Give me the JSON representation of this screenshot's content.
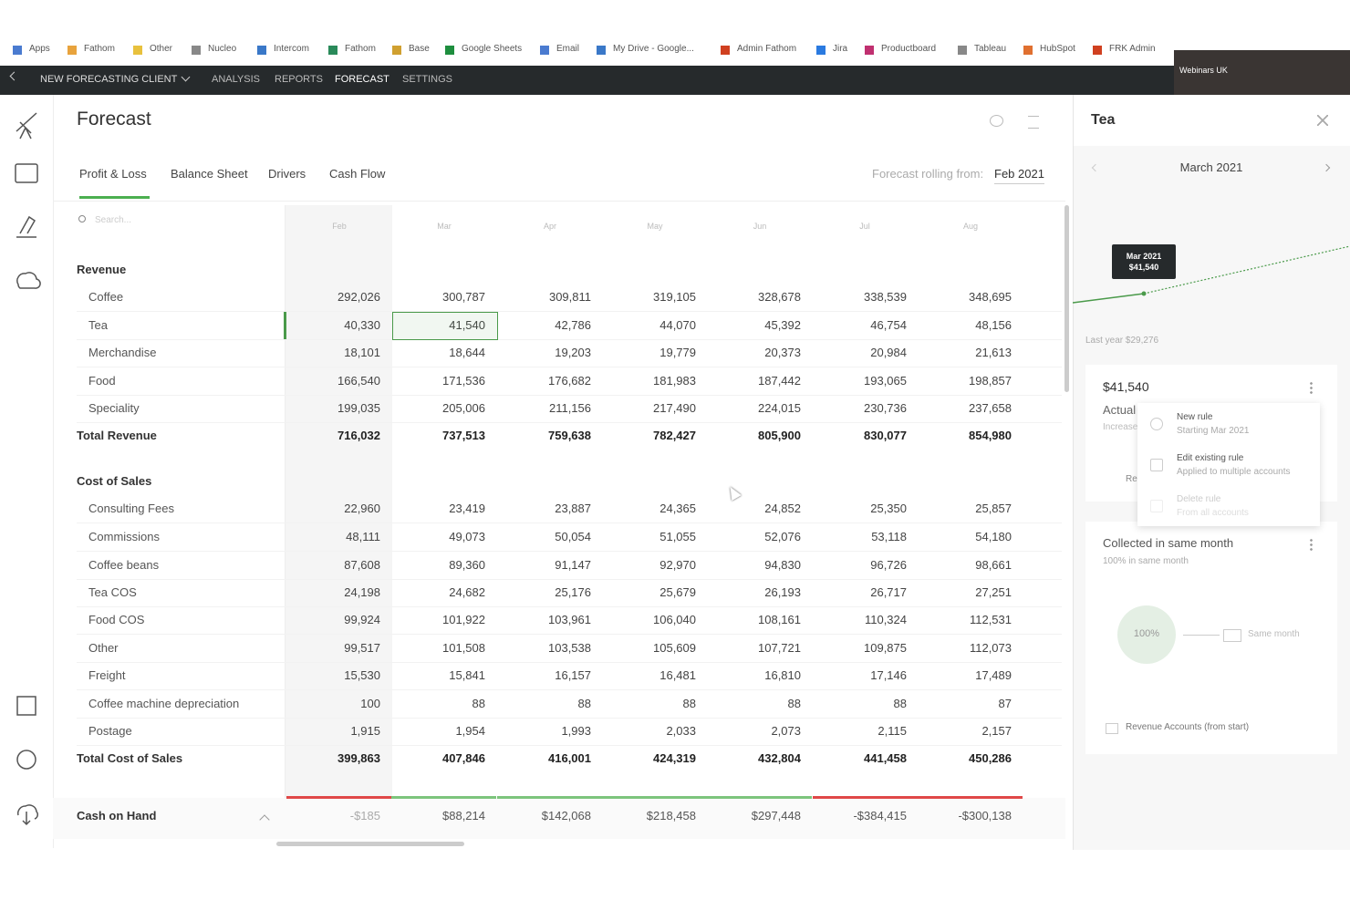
{
  "bookmarks": [
    "Apps",
    "Fathom",
    "Other",
    "Nucleo",
    "Intercom",
    "Fathom",
    "Base",
    "Google Sheets",
    "Email",
    "My Drive - Google...",
    "Admin Fathom",
    "Jira",
    "Productboard",
    "Tableau",
    "HubSpot",
    "FRK Admin"
  ],
  "nav": {
    "client": "NEW FORECASTING CLIENT",
    "items": [
      "ANALYSIS",
      "REPORTS",
      "FORECAST",
      "SETTINGS"
    ],
    "webcam_label": "Webinars UK"
  },
  "header": {
    "title": "Forecast",
    "tabs": [
      "Profit & Loss",
      "Balance Sheet",
      "Drivers",
      "Cash Flow"
    ],
    "rolling_label": "Forecast rolling from:",
    "rolling_value": "Feb 2021",
    "search_placeholder": "Search..."
  },
  "table": {
    "columns": [
      "Feb",
      "Mar",
      "Apr",
      "May",
      "Jun",
      "Jul",
      "Aug"
    ],
    "sections": [
      {
        "title": "Revenue",
        "rows": [
          {
            "label": "Coffee",
            "values": [
              "292,026",
              "300,787",
              "309,811",
              "319,105",
              "328,678",
              "338,539",
              "348,695"
            ]
          },
          {
            "label": "Tea",
            "values": [
              "40,330",
              "41,540",
              "42,786",
              "44,070",
              "45,392",
              "46,754",
              "48,156"
            ]
          },
          {
            "label": "Merchandise",
            "values": [
              "18,101",
              "18,644",
              "19,203",
              "19,779",
              "20,373",
              "20,984",
              "21,613"
            ]
          },
          {
            "label": "Food",
            "values": [
              "166,540",
              "171,536",
              "176,682",
              "181,983",
              "187,442",
              "193,065",
              "198,857"
            ]
          },
          {
            "label": "Speciality",
            "values": [
              "199,035",
              "205,006",
              "211,156",
              "217,490",
              "224,015",
              "230,736",
              "237,658"
            ]
          }
        ],
        "total": {
          "label": "Total Revenue",
          "values": [
            "716,032",
            "737,513",
            "759,638",
            "782,427",
            "805,900",
            "830,077",
            "854,980"
          ]
        }
      },
      {
        "title": "Cost of Sales",
        "rows": [
          {
            "label": "Consulting Fees",
            "values": [
              "22,960",
              "23,419",
              "23,887",
              "24,365",
              "24,852",
              "25,350",
              "25,857"
            ]
          },
          {
            "label": "Commissions",
            "values": [
              "48,111",
              "49,073",
              "50,054",
              "51,055",
              "52,076",
              "53,118",
              "54,180"
            ]
          },
          {
            "label": "Coffee beans",
            "values": [
              "87,608",
              "89,360",
              "91,147",
              "92,970",
              "94,830",
              "96,726",
              "98,661"
            ]
          },
          {
            "label": "Tea COS",
            "values": [
              "24,198",
              "24,682",
              "25,176",
              "25,679",
              "26,193",
              "26,717",
              "27,251"
            ]
          },
          {
            "label": "Food COS",
            "values": [
              "99,924",
              "101,922",
              "103,961",
              "106,040",
              "108,161",
              "110,324",
              "112,531"
            ]
          },
          {
            "label": "Other",
            "values": [
              "99,517",
              "101,508",
              "103,538",
              "105,609",
              "107,721",
              "109,875",
              "112,073"
            ]
          },
          {
            "label": "Freight",
            "values": [
              "15,530",
              "15,841",
              "16,157",
              "16,481",
              "16,810",
              "17,146",
              "17,489"
            ]
          },
          {
            "label": "Coffee machine depreciation",
            "values": [
              "100",
              "88",
              "88",
              "88",
              "88",
              "88",
              "87"
            ]
          },
          {
            "label": "Postage",
            "values": [
              "1,915",
              "1,954",
              "1,993",
              "2,033",
              "2,073",
              "2,115",
              "2,157"
            ]
          }
        ],
        "total": {
          "label": "Total Cost of Sales",
          "values": [
            "399,863",
            "407,846",
            "416,001",
            "424,319",
            "432,804",
            "441,458",
            "450,286"
          ]
        }
      }
    ],
    "cash_on_hand": {
      "label": "Cash on Hand",
      "values": [
        "-$185",
        "$88,214",
        "$142,068",
        "$218,458",
        "$297,448",
        "-$384,415",
        "-$300,138"
      ]
    }
  },
  "panel": {
    "title": "Tea",
    "month": "March 2021",
    "tooltip_month": "Mar 2021",
    "tooltip_value": "$41,540",
    "last_year": "Last year $29,276",
    "card": {
      "value": "$41,540",
      "status": "Actual",
      "note": "Increase",
      "link": "Re"
    },
    "menu": [
      {
        "title": "New rule",
        "sub": "Starting Mar 2021"
      },
      {
        "title": "Edit existing rule",
        "sub": "Applied to multiple accounts"
      },
      {
        "title": "Delete rule",
        "sub": "From all accounts"
      }
    ],
    "collection": {
      "title": "Collected in same month",
      "sub": "100% in same month",
      "pct": "100%",
      "target": "Same month",
      "footer": "Revenue Accounts (from start)"
    }
  }
}
